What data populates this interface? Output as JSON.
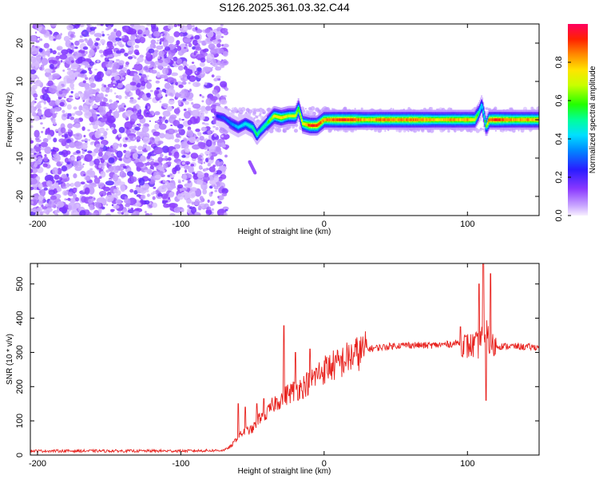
{
  "title": "S126.2025.361.03.32.C44",
  "chart_data": [
    {
      "type": "heatmap",
      "title": "S126.2025.361.03.32.C44",
      "xlabel": "Height of straight line (km)",
      "ylabel": "Frequency (Hz)",
      "xlim": [
        -205,
        150
      ],
      "ylim": [
        -25,
        25
      ],
      "xticks": [
        -200,
        -100,
        0,
        100
      ],
      "yticks": [
        -20,
        -10,
        0,
        10,
        20
      ],
      "colorbar": {
        "label": "Normalized spectral amplitude",
        "range": [
          0,
          1
        ],
        "ticks": [
          0.0,
          0.2,
          0.4,
          0.6,
          0.8
        ],
        "colors": [
          "#f2e6ff",
          "#c9a8ff",
          "#8a38ff",
          "#2222ff",
          "#00aaff",
          "#00ffd0",
          "#00ff44",
          "#b0ff00",
          "#ffff00",
          "#ff9900",
          "#ff2200",
          "#ff0066"
        ]
      },
      "noise_region": {
        "x": [
          -205,
          -68
        ],
        "y": [
          -25,
          25
        ]
      },
      "ridge": {
        "x": [
          -75,
          -70,
          -65,
          -60,
          -55,
          -50,
          -47,
          -45,
          -40,
          -35,
          -30,
          -25,
          -20,
          -18,
          -15,
          -10,
          -5,
          0,
          10,
          20,
          30,
          40,
          50,
          60,
          70,
          80,
          90,
          95,
          100,
          105,
          108,
          110,
          113,
          115,
          120,
          130,
          140,
          150
        ],
        "y": [
          1,
          0.5,
          -1,
          -2,
          -1,
          -2,
          -4,
          -3,
          -1,
          1,
          0.5,
          1,
          1,
          3,
          -1,
          -1.5,
          -1.5,
          0,
          0,
          0,
          0,
          0,
          0,
          0,
          0,
          0,
          0,
          0,
          0,
          0,
          2,
          4,
          -2,
          0,
          0,
          0,
          0,
          0
        ],
        "amplitude": [
          0.25,
          0.3,
          0.35,
          0.4,
          0.45,
          0.5,
          0.55,
          0.5,
          0.55,
          0.75,
          0.8,
          0.7,
          0.75,
          0.6,
          0.75,
          0.95,
          0.95,
          0.85,
          0.95,
          0.95,
          0.8,
          0.9,
          0.85,
          0.9,
          0.85,
          0.8,
          0.85,
          0.8,
          0.85,
          0.75,
          0.5,
          0.4,
          0.6,
          0.9,
          0.95,
          0.85,
          0.85,
          0.85
        ]
      },
      "spur": {
        "x": [
          -52,
          -48
        ],
        "y": [
          -11,
          -14
        ]
      }
    },
    {
      "type": "line",
      "xlabel": "Height of straight line (km)",
      "ylabel": "SNR (10 * v/v)",
      "xlim": [
        -205,
        150
      ],
      "ylim": [
        0,
        560
      ],
      "xticks": [
        -200,
        -100,
        0,
        100
      ],
      "yticks": [
        0,
        100,
        200,
        300,
        400,
        500
      ],
      "series": [
        {
          "name": "SNR",
          "color": "#e8231f",
          "x": [
            -205,
            -180,
            -150,
            -120,
            -100,
            -80,
            -70,
            -65,
            -60,
            -55,
            -50,
            -45,
            -40,
            -35,
            -30,
            -25,
            -20,
            -15,
            -10,
            -5,
            0,
            5,
            10,
            15,
            20,
            25,
            30,
            40,
            50,
            60,
            70,
            80,
            90,
            95,
            100,
            105,
            108,
            110,
            112,
            113,
            115,
            120,
            130,
            140,
            150
          ],
          "y": [
            12,
            12,
            12,
            12,
            12,
            13,
            14,
            25,
            55,
            70,
            75,
            110,
            120,
            150,
            165,
            180,
            190,
            200,
            215,
            235,
            250,
            260,
            265,
            280,
            290,
            300,
            310,
            315,
            320,
            322,
            320,
            322,
            325,
            330,
            318,
            320,
            320,
            370,
            300,
            420,
            320,
            318,
            318,
            316,
            315
          ],
          "spikes": [
            {
              "x": -60,
              "y": 150
            },
            {
              "x": -55,
              "y": 140
            },
            {
              "x": -47,
              "y": 150
            },
            {
              "x": -42,
              "y": 165
            },
            {
              "x": -28,
              "y": 378
            },
            {
              "x": -20,
              "y": 300
            },
            {
              "x": -10,
              "y": 310
            },
            {
              "x": 95,
              "y": 375
            },
            {
              "x": 108,
              "y": 500
            },
            {
              "x": 111,
              "y": 560
            },
            {
              "x": 113,
              "y": 160
            },
            {
              "x": 116,
              "y": 530
            }
          ]
        }
      ]
    }
  ]
}
